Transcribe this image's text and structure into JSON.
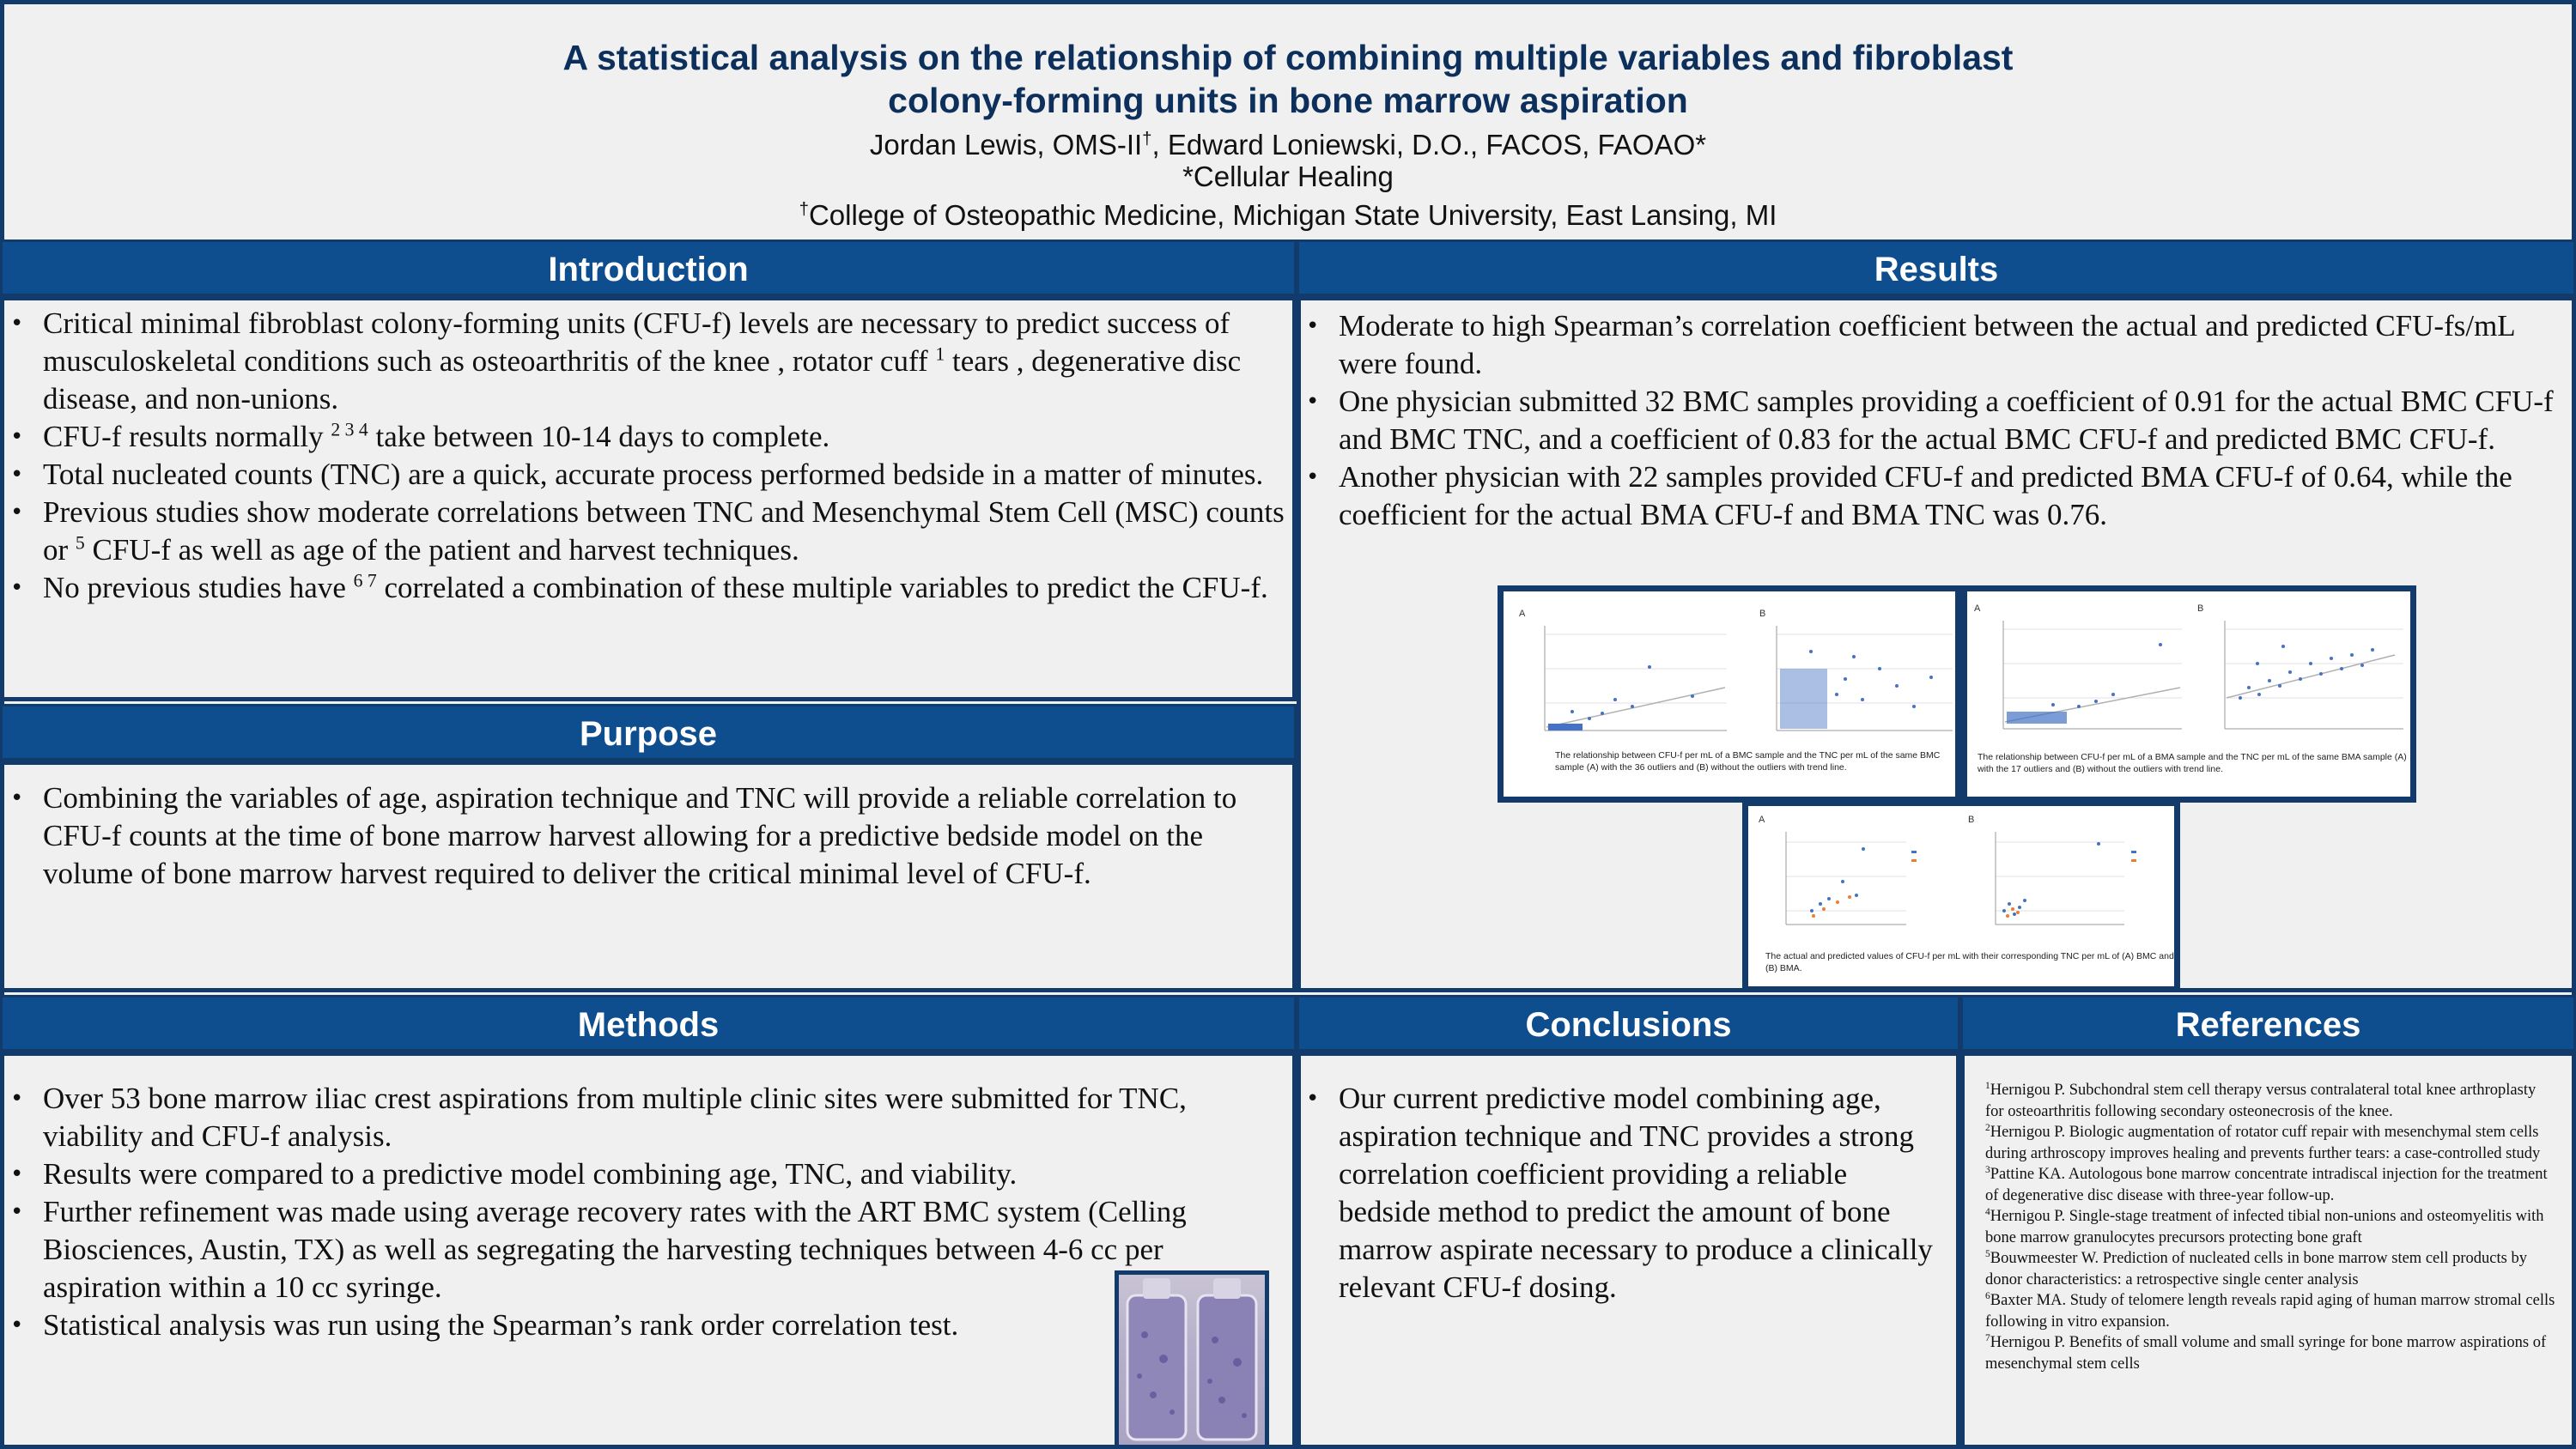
{
  "header": {
    "title_line1": "A statistical analysis on the relationship of combining multiple variables and fibroblast",
    "title_line2": "colony-forming units in bone marrow aspiration",
    "author1": "Jordan Lewis, OMS-II",
    "author1_mark": "†",
    "author2": ", Edward Loniewski, D.O., FACOS, FAOAO*",
    "affiliation1": "*Cellular Healing",
    "affiliation2_mark": "†",
    "affiliation2": "College of Osteopathic Medicine, Michigan State University, East Lansing, MI"
  },
  "introduction": {
    "heading": "Introduction",
    "b1": "Critical minimal fibroblast colony-forming units (CFU-f) levels are necessary to predict success of musculoskeletal conditions such as osteoarthritis of the knee , rotator cuff ",
    "b1_ref": "1",
    "b1_end": " tears , degenerative disc disease, and non-unions.",
    "b2": "CFU-f results normally ",
    "b2_ref": "2 3 4",
    "b2_end": " take between 10-14 days to complete.",
    "b3": "Total nucleated counts (TNC) are a quick, accurate process performed bedside in a matter of minutes.",
    "b4": "Previous studies show moderate correlations between TNC and Mesenchymal Stem Cell (MSC) counts or ",
    "b4_ref": "5",
    "b4_end": " CFU-f as well as age of the patient and harvest techniques.",
    "b5": "No previous studies have ",
    "b5_ref": "6 7",
    "b5_end": " correlated a combination of these multiple variables to predict the CFU-f."
  },
  "purpose": {
    "heading": "Purpose",
    "b1": "Combining the variables of age, aspiration technique and TNC will provide a reliable correlation to CFU-f counts at the time of bone marrow harvest allowing for a predictive bedside model on the volume of bone marrow harvest required to deliver the critical minimal level of CFU-f."
  },
  "methods": {
    "heading": "Methods",
    "b1": "Over 53 bone marrow iliac crest aspirations from multiple clinic sites were submitted for TNC, viability and CFU-f analysis.",
    "b2": "Results were compared to a predictive model combining age, TNC, and viability.",
    "b3": "Further refinement was made using average recovery rates with the ART BMC system (Celling Biosciences, Austin, TX) as well as segregating the harvesting techniques between 4-6 cc per aspiration within a 10 cc syringe.",
    "b4": "Statistical analysis was run using the Spearman’s rank order correlation test."
  },
  "results": {
    "heading": "Results",
    "b1": "Moderate to high Spearman’s correlation coefficient between the actual and predicted CFU-fs/mL were found.",
    "b2": "One physician submitted 32 BMC samples providing a coefficient of 0.91 for the actual BMC CFU-f and BMC TNC, and a coefficient of 0.83 for the actual BMC CFU-f and predicted BMC CFU-f.",
    "b3": "Another physician with 22 samples provided CFU-f and predicted BMA CFU-f of 0.64, while the coefficient for the actual BMA CFU-f and BMA TNC was 0.76.",
    "fig1_caption": "The relationship between CFU-f per mL of a BMC sample and the TNC per mL of the same BMC sample (A) with the 36 outliers and (B) without the outliers with trend line.",
    "fig2_caption": "The relationship between CFU-f per mL of a BMA sample and the TNC per mL of the same BMA sample (A) with the 17 outliers and (B) without the outliers with trend line.",
    "fig3_caption": "The actual and predicted values of CFU-f per mL with their corresponding TNC per mL of (A) BMC and (B) BMA.",
    "label_a": "A",
    "label_b": "B"
  },
  "conclusions": {
    "heading": "Conclusions",
    "b1": "Our current predictive model combining age, aspiration technique and TNC provides a strong correlation coefficient providing a reliable bedside method to predict the amount of bone marrow aspirate necessary to produce a clinically relevant CFU-f dosing."
  },
  "references": {
    "heading": "References",
    "items": [
      {
        "n": "1",
        "text": "Hernigou  P. Subchondral stem cell therapy versus contralateral total knee arthroplasty for osteoarthritis following secondary osteonecrosis of the knee."
      },
      {
        "n": "2",
        "text": "Hernigou P. Biologic augmentation of rotator cuff repair with mesenchymal stem cells during arthroscopy improves healing and prevents further tears: a case-controlled study"
      },
      {
        "n": "3",
        "text": "Pattine KA. Autologous bone marrow concentrate intradiscal injection for the treatment of degenerative disc disease with three-year follow-up."
      },
      {
        "n": "4",
        "text": "Hernigou P. Single-stage treatment of infected tibial non-unions and osteomyelitis with bone marrow granulocytes precursors protecting bone graft"
      },
      {
        "n": "5",
        "text": "Bouwmeester W. Prediction of nucleated cells in bone marrow stem cell products by donor characteristics: a retrospective single center analysis"
      },
      {
        "n": "6",
        "text": "Baxter MA. Study of telomere length reveals rapid aging of human marrow stromal cells following in vitro expansion."
      },
      {
        "n": "7",
        "text": "Hernigou P. Benefits of small volume and small syringe for bone marrow aspirations of mesenchymal stem cells"
      }
    ]
  },
  "colors": {
    "navy": "#123b6b",
    "heading_blue": "#0e4d8e",
    "marker_blue": "#4472c4",
    "marker_orange": "#ed7d31"
  }
}
